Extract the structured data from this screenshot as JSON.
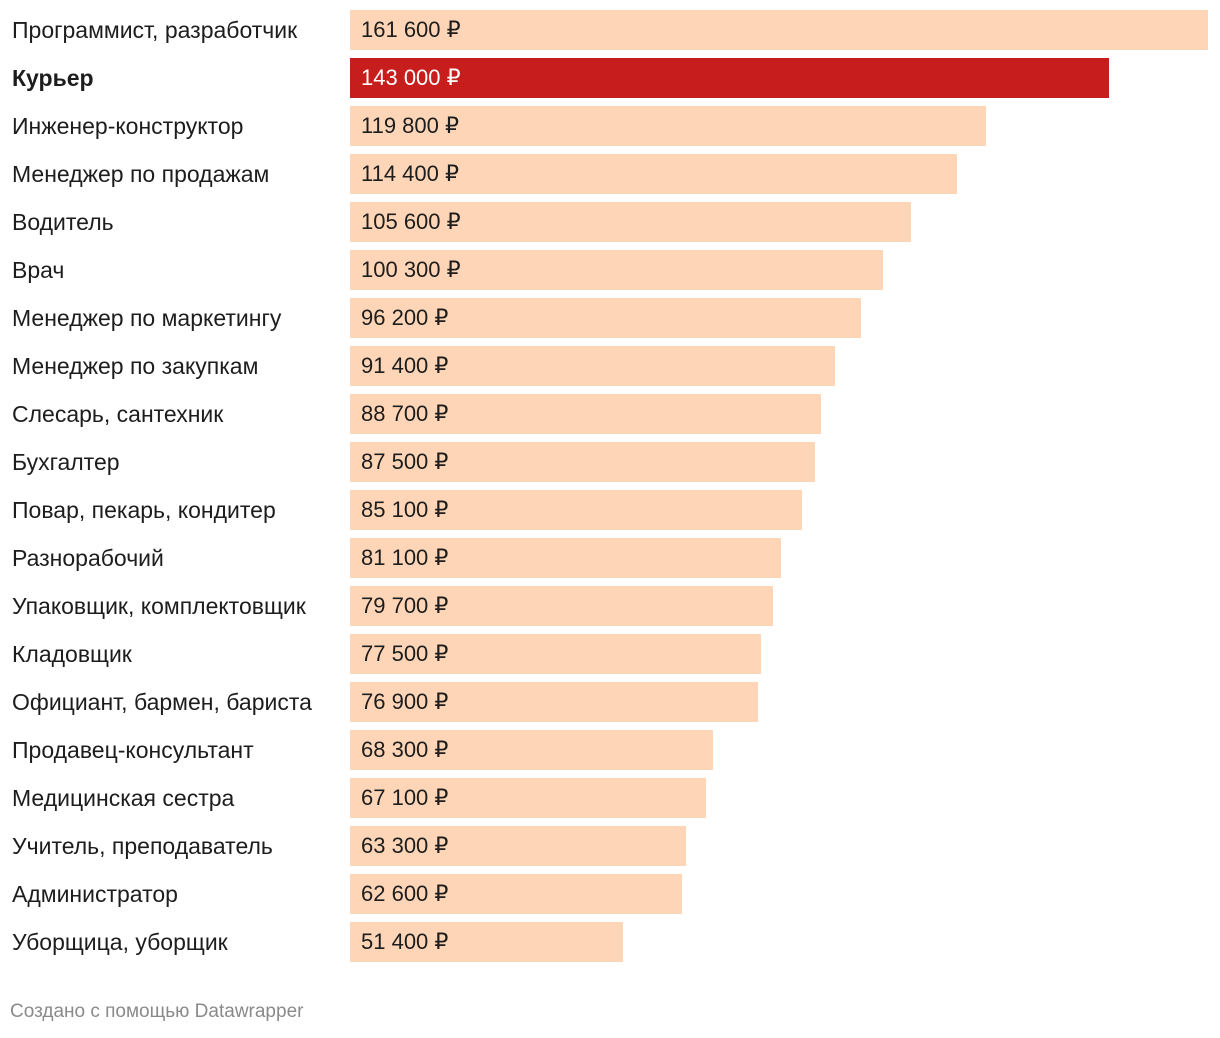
{
  "chart_data": {
    "type": "bar",
    "orientation": "horizontal",
    "categories": [
      "Программист, разработчик",
      "Курьер",
      "Инженер-конструктор",
      "Менеджер по продажам",
      "Водитель",
      "Врач",
      "Менеджер по маркетингу",
      "Менеджер по закупкам",
      "Слесарь, сантехник",
      "Бухгалтер",
      "Повар, пекарь, кондитер",
      "Разнорабочий",
      "Упаковщик, комплектовщик",
      "Кладовщик",
      "Официант, бармен, бариста",
      "Продавец-консультант",
      "Медицинская сестра",
      "Учитель, преподаватель",
      "Администратор",
      "Уборщица, уборщик"
    ],
    "values": [
      161600,
      143000,
      119800,
      114400,
      105600,
      100300,
      96200,
      91400,
      88700,
      87500,
      85100,
      81100,
      79700,
      77500,
      76900,
      68300,
      67100,
      63300,
      62600,
      51400
    ],
    "value_labels": [
      "161 600 ₽",
      "143 000 ₽",
      "119 800 ₽",
      "114 400 ₽",
      "105 600 ₽",
      "100 300 ₽",
      "96 200 ₽",
      "91 400 ₽",
      "88 700 ₽",
      "87 500 ₽",
      "85 100 ₽",
      "81 100 ₽",
      "79 700 ₽",
      "77 500 ₽",
      "76 900 ₽",
      "68 300 ₽",
      "67 100 ₽",
      "63 300 ₽",
      "62 600 ₽",
      "51 400 ₽"
    ],
    "highlight": "Курьер",
    "xlim": [
      0,
      161600
    ],
    "grid": false,
    "legend": "none",
    "colors": {
      "bar": "#fed6b7",
      "highlight_bar": "#c71e1d",
      "label": "#1d1d1d",
      "highlight_label": "#ffffff"
    }
  },
  "footer": {
    "credit": "Создано с помощью Datawrapper"
  }
}
